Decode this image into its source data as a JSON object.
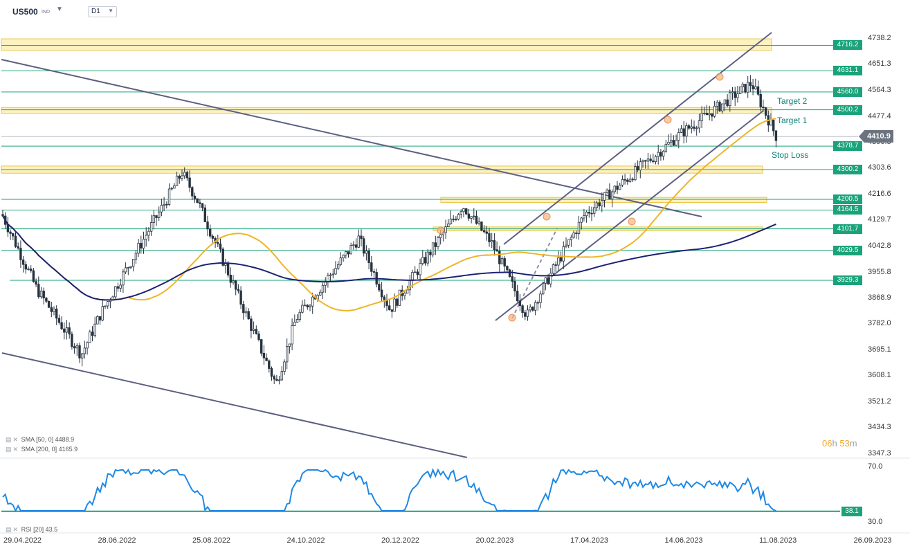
{
  "header": {
    "symbol": "US500",
    "symbol_suffix": "IND",
    "timeframe": "D1"
  },
  "price_axis": {
    "ticks": [
      "4738.2",
      "4651.3",
      "4564.3",
      "4477.4",
      "4390.5",
      "4303.6",
      "4216.6",
      "4129.7",
      "4042.8",
      "3955.8",
      "3868.9",
      "3782.0",
      "3695.1",
      "3608.1",
      "3521.2",
      "3434.3",
      "3347.3"
    ],
    "current_price": "4410.9",
    "current_color": "#6b7280"
  },
  "levels": [
    {
      "label": "4716.2",
      "value": 4716.2
    },
    {
      "label": "4631.1",
      "value": 4631.1
    },
    {
      "label": "4560.0",
      "value": 4560.0
    },
    {
      "label": "4500.2",
      "value": 4500.2
    },
    {
      "label": "4378.7",
      "value": 4378.7
    },
    {
      "label": "4300.2",
      "value": 4300.2
    },
    {
      "label": "4200.5",
      "value": 4200.5
    },
    {
      "label": "4164.5",
      "value": 4164.5
    },
    {
      "label": "4101.7",
      "value": 4101.7
    },
    {
      "label": "4029.5",
      "value": 4029.5
    },
    {
      "label": "3929.3",
      "value": 3929.3
    }
  ],
  "level_color": "#1aa37a",
  "annotations": {
    "target2": "Target 2",
    "target1": "Target 1",
    "stop_loss": "Stop Loss"
  },
  "indicators": {
    "sma50": {
      "label": "SMA",
      "params": "[50, 0]",
      "value": "4488.9",
      "color": "#f0b429"
    },
    "sma200": {
      "label": "SMA",
      "params": "[200, 0]",
      "value": "4165.9",
      "color": "#1c2273"
    },
    "rsi": {
      "label": "RSI",
      "params": "[20]",
      "value": "43.5",
      "color": "#1e88e5",
      "level_label": "38.1",
      "ticks": [
        "70.0",
        "30.0"
      ]
    }
  },
  "timer": {
    "hours": "06",
    "h": "h",
    "minutes": "53",
    "m": "m"
  },
  "time_axis": [
    "29.04.2022",
    "28.06.2022",
    "25.08.2022",
    "24.10.2022",
    "20.12.2022",
    "20.02.2023",
    "17.04.2023",
    "14.06.2023",
    "11.08.2023",
    "26.09.2023"
  ],
  "chart_data": {
    "type": "candlestick",
    "timeframe": "D1",
    "ylim": [
      3347.3,
      4738.2
    ],
    "x_range": [
      "29.04.2022",
      "26.09.2023"
    ],
    "close_path": [
      {
        "date": "29.04.2022",
        "price": 4150
      },
      {
        "date": "20.05.2022",
        "price": 3900
      },
      {
        "date": "16.06.2022",
        "price": 3680
      },
      {
        "date": "28.06.2022",
        "price": 3820
      },
      {
        "date": "16.08.2022",
        "price": 4290
      },
      {
        "date": "25.08.2022",
        "price": 4200
      },
      {
        "date": "12.10.2022",
        "price": 3580
      },
      {
        "date": "24.10.2022",
        "price": 3800
      },
      {
        "date": "01.12.2022",
        "price": 4070
      },
      {
        "date": "20.12.2022",
        "price": 3830
      },
      {
        "date": "02.02.2023",
        "price": 4180
      },
      {
        "date": "20.02.2023",
        "price": 4050
      },
      {
        "date": "13.03.2023",
        "price": 3810
      },
      {
        "date": "17.04.2023",
        "price": 4150
      },
      {
        "date": "14.06.2023",
        "price": 4420
      },
      {
        "date": "27.07.2023",
        "price": 4590
      },
      {
        "date": "11.08.2023",
        "price": 4410.9
      }
    ],
    "horizontal_levels": [
      4716.2,
      4631.1,
      4560.0,
      4500.2,
      4378.7,
      4300.2,
      4200.5,
      4164.5,
      4101.7,
      4029.5,
      3929.3
    ],
    "series": [
      {
        "name": "SMA [50, 0]",
        "last": 4488.9
      },
      {
        "name": "SMA [200, 0]",
        "last": 4165.9
      },
      {
        "name": "RSI [20]",
        "last": 43.5,
        "level": 38.1,
        "ylim": [
          30,
          70
        ]
      }
    ]
  }
}
